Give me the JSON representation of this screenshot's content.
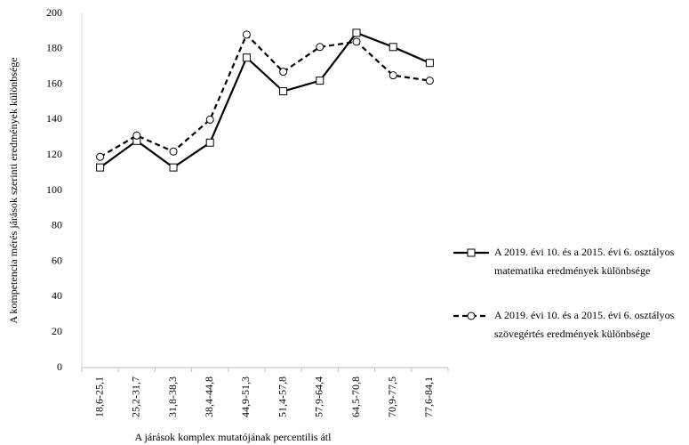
{
  "chart_data": {
    "type": "line",
    "x_label": "A járások komplex mutatójának percentilis átl",
    "y_label": "A kompetencia mérés járások szerinti eredmények különbsége",
    "categories": [
      "18,6-25,1",
      "25,2-31,7",
      "31,8-38,3",
      "38,4-44,8",
      "44,9-51,3",
      "51,4-57,8",
      "57,9-64,4",
      "64,5-70,8",
      "70,9-77,5",
      "77,6-84,1"
    ],
    "series": [
      {
        "name": "A 2019. évi 10. és a 2015. évi 6. osztályos matematika eredmények különbsége",
        "color": "#000000",
        "line_style": "solid",
        "marker": "square",
        "values": [
          113,
          128,
          113,
          127,
          175,
          156,
          162,
          189,
          181,
          172
        ]
      },
      {
        "name": "A 2019. évi 10. és a 2015. évi 6. osztályos szövegértés  eredmények különbsége",
        "color": "#000000",
        "line_style": "dashed",
        "marker": "circle",
        "values": [
          119,
          131,
          122,
          140,
          188,
          167,
          181,
          184,
          165,
          162
        ]
      }
    ],
    "ylim": [
      0,
      200
    ],
    "yticks": [
      0,
      20,
      40,
      60,
      80,
      100,
      120,
      140,
      160,
      180,
      200
    ],
    "grid": false,
    "legend": "right"
  }
}
